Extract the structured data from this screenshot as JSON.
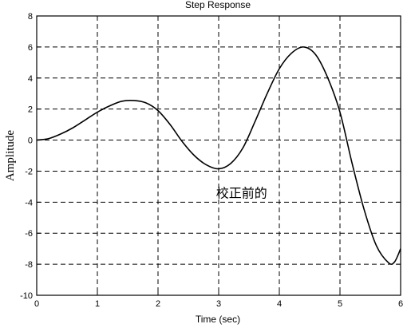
{
  "chart_data": {
    "type": "line",
    "title": "Step Response",
    "xlabel": "Time (sec)",
    "ylabel": "Amplitude",
    "xlim": [
      0,
      6
    ],
    "ylim": [
      -10,
      8
    ],
    "xticks": [
      0,
      1,
      2,
      3,
      4,
      5,
      6
    ],
    "xtick_labels": [
      "0",
      "1",
      "2",
      "3",
      "4",
      "5",
      "6"
    ],
    "yticks": [
      8,
      6,
      4,
      2,
      0,
      -2,
      -4,
      -6,
      -8,
      -10
    ],
    "ytick_labels": [
      "8",
      "6",
      "4",
      "2",
      "0",
      "-2",
      "-4",
      "-6",
      "-8",
      "-10"
    ],
    "grid": true,
    "annotation": {
      "text": "校正前的",
      "x": 3.3,
      "y": -3.4
    },
    "series": [
      {
        "x": [
          0,
          0.2,
          0.4,
          0.6,
          0.8,
          1.0,
          1.2,
          1.4,
          1.6,
          1.8,
          2.0,
          2.2,
          2.4,
          2.6,
          2.8,
          3.0,
          3.2,
          3.4,
          3.6,
          3.8,
          4.0,
          4.2,
          4.4,
          4.6,
          4.8,
          5.0,
          5.2,
          5.4,
          5.6,
          5.8,
          5.9,
          6.0
        ],
        "y": [
          0,
          0.1,
          0.4,
          0.8,
          1.3,
          1.8,
          2.2,
          2.5,
          2.55,
          2.4,
          1.9,
          1.0,
          -0.1,
          -1.0,
          -1.6,
          -1.85,
          -1.5,
          -0.5,
          1.2,
          3.0,
          4.6,
          5.6,
          6.0,
          5.5,
          4.0,
          1.8,
          -1.5,
          -4.5,
          -6.8,
          -7.9,
          -7.85,
          -7.0
        ]
      }
    ]
  }
}
